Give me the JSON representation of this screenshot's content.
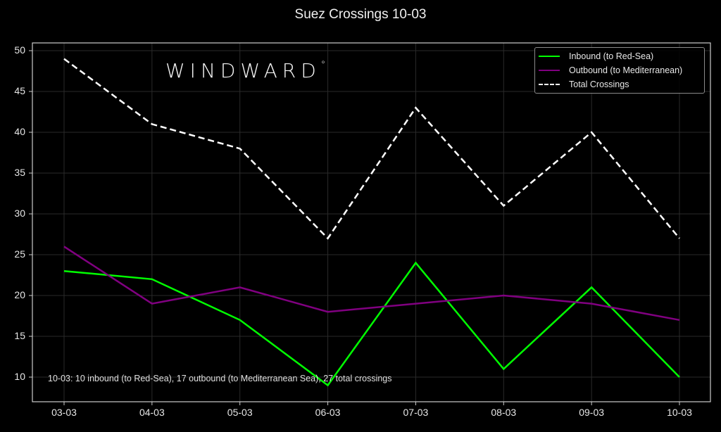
{
  "chart_data": {
    "type": "line",
    "title": "Suez Crossings 10-03",
    "xlabel": "",
    "ylabel": "",
    "categories": [
      "03-03",
      "04-03",
      "05-03",
      "06-03",
      "07-03",
      "08-03",
      "09-03",
      "10-03"
    ],
    "series": [
      {
        "name": "Inbound (to Red-Sea)",
        "color": "#00ff00",
        "style": "solid",
        "values": [
          23,
          22,
          17,
          9,
          24,
          11,
          21,
          10
        ]
      },
      {
        "name": "Outbound (to Mediterranean)",
        "color": "#800080",
        "style": "solid",
        "values": [
          26,
          19,
          21,
          18,
          19,
          20,
          19,
          17
        ]
      },
      {
        "name": "Total Crossings",
        "color": "#ffffff",
        "style": "dashed",
        "values": [
          49,
          41,
          38,
          27,
          43,
          31,
          40,
          27
        ]
      }
    ],
    "yticks": [
      10,
      15,
      20,
      25,
      30,
      35,
      40,
      45,
      50
    ],
    "ylim": [
      7.1,
      51.9
    ],
    "grid": true,
    "legend_position": "upper right",
    "annotation": "10-03: 10 inbound (to Red-Sea), 17 outbound (to Mediterranean Sea), 27 total crossings",
    "watermark": "WINDWARD"
  },
  "title": "Suez Crossings 10-03",
  "watermark": {
    "text": "WINDWARD",
    "mark": "°"
  },
  "annotation": "10-03: 10 inbound (to Red-Sea), 17 outbound (to Mediterranean Sea), 27 total crossings",
  "legend": [
    {
      "label": "Inbound (to Red-Sea)",
      "color": "#00ff00"
    },
    {
      "label": "Outbound (to Mediterranean)",
      "color": "#800080"
    },
    {
      "label": "Total Crossings",
      "color": "#ffffff"
    }
  ],
  "colors": {
    "background": "#000000",
    "axis": "#cccccc",
    "grid": "#2a2a2a"
  }
}
